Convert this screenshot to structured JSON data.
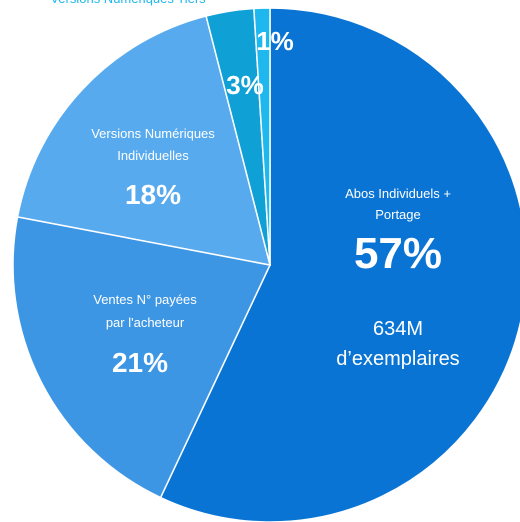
{
  "chart_data": {
    "type": "pie",
    "categories": [
      [
        "Abos Individuels +",
        "Portage"
      ],
      [
        "Ventes N° payées",
        "par l'acheteur"
      ],
      [
        "Versions Numériques",
        "Individuelles"
      ],
      [
        "Versions Numériques Tiers"
      ],
      null
    ],
    "values": [
      57,
      21,
      18,
      3,
      1
    ],
    "value_labels": [
      "57%",
      "21%",
      "18%",
      "3%",
      "1%"
    ],
    "colors": [
      "#0a74d4",
      "#3d96e4",
      "#57aaee",
      "#0fa0d6",
      "#1fb8ee"
    ],
    "annotation": [
      "634M",
      "d’exemplaires"
    ]
  }
}
